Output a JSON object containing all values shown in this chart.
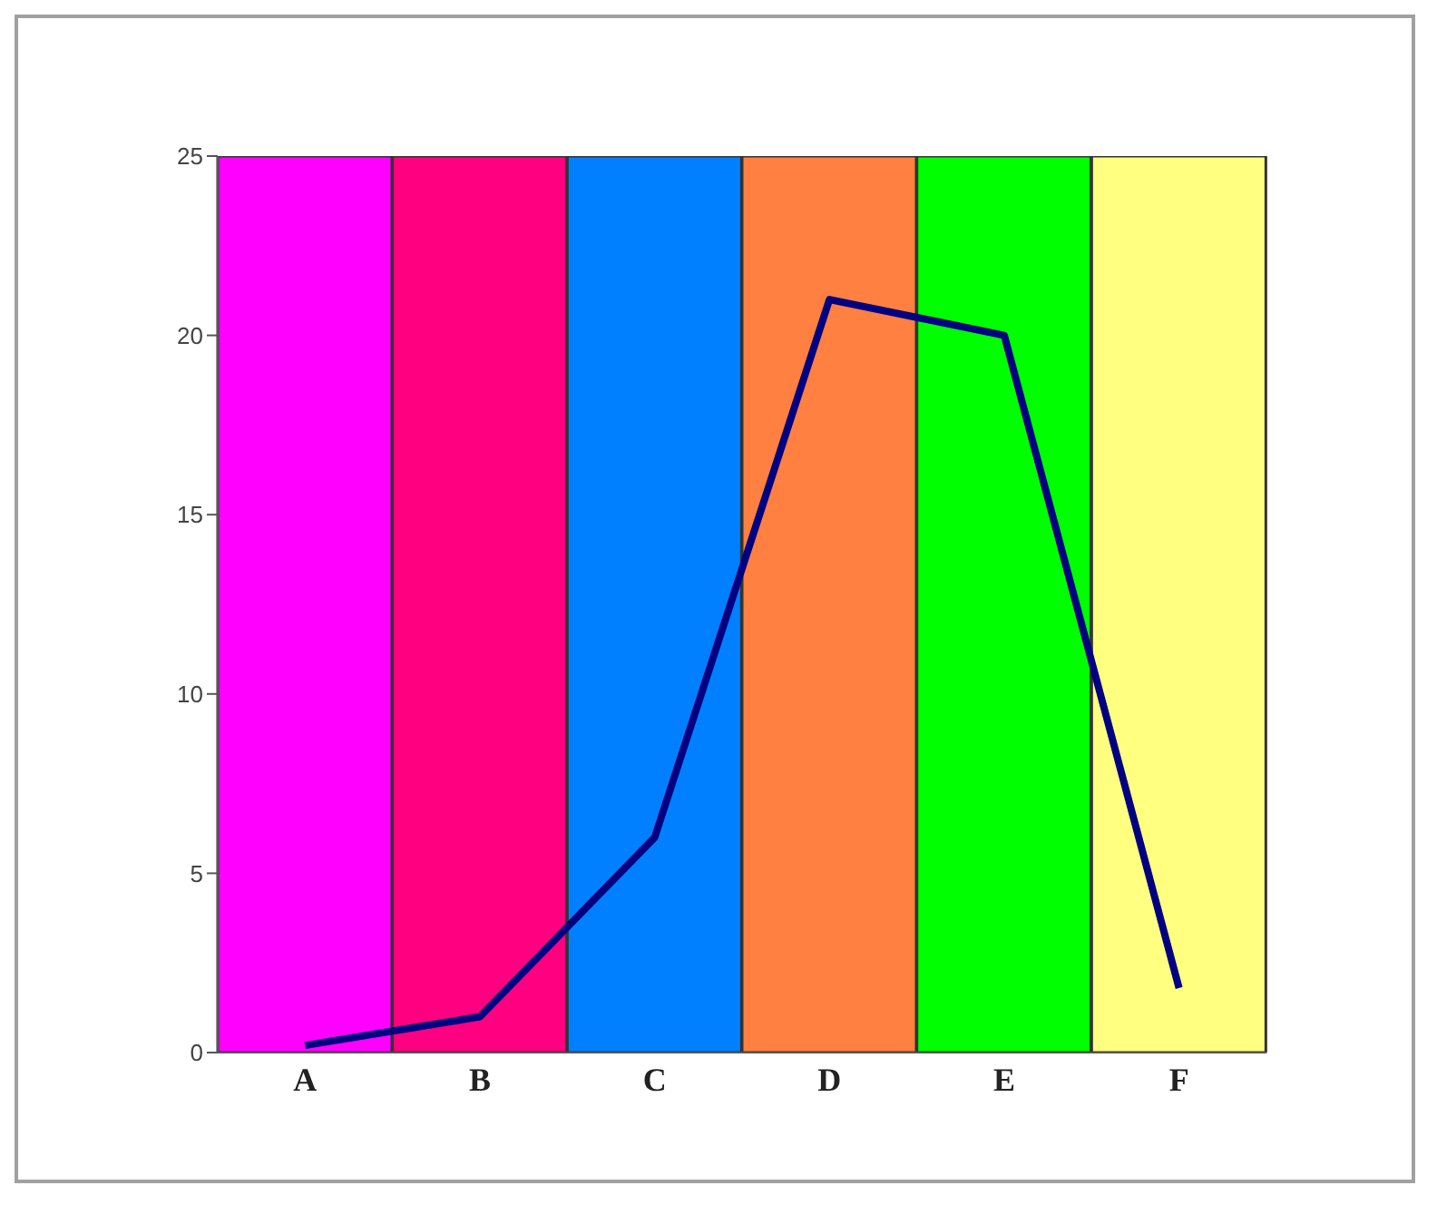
{
  "chart_data": {
    "type": "bar",
    "categories": [
      "A",
      "B",
      "C",
      "D",
      "E",
      "F"
    ],
    "series": [
      {
        "colors": [
          "#ff00ff",
          "#ff0080",
          "#0080ff",
          "#ff8040",
          "#00ff00",
          "#ffff80"
        ],
        "values": [
          25,
          25,
          25,
          25,
          25,
          25
        ]
      },
      {
        "type": "line",
        "color": "#000080",
        "values": [
          0.2,
          1,
          6,
          21,
          20,
          1.8
        ]
      }
    ],
    "ylim": [
      0,
      25
    ],
    "yticks": [
      0,
      5,
      10,
      15,
      20,
      25
    ],
    "grid": false,
    "legend": false,
    "marker": "none",
    "line_style": "solid"
  }
}
